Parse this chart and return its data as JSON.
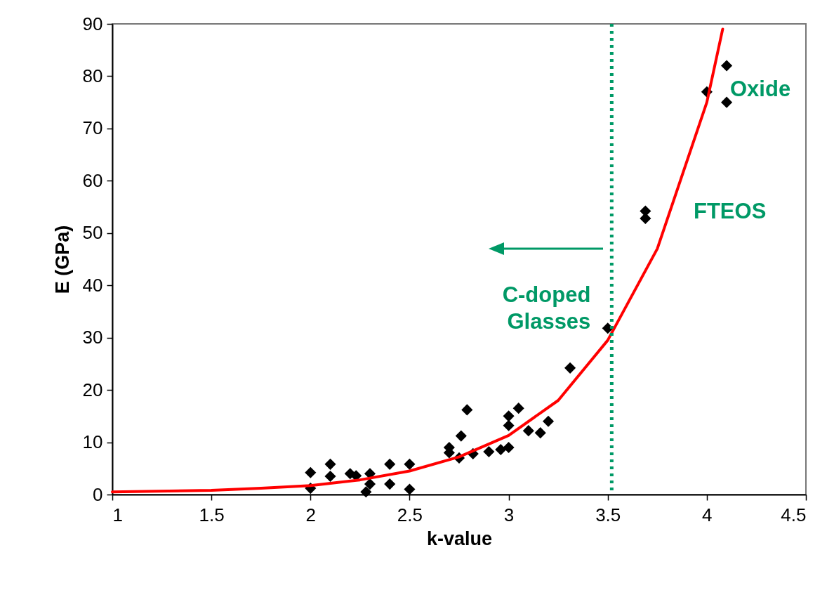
{
  "chart_data": {
    "type": "scatter",
    "xlabel": "k-value",
    "ylabel": "E (GPa)",
    "xlim": [
      1,
      4.5
    ],
    "ylim": [
      0,
      90
    ],
    "xticks": [
      1,
      1.5,
      2,
      2.5,
      3,
      3.5,
      4,
      4.5
    ],
    "yticks": [
      0,
      10,
      20,
      30,
      40,
      50,
      60,
      70,
      80,
      90
    ],
    "grid": false,
    "series": [
      {
        "type": "scatter",
        "marker": "diamond",
        "color": "#000000",
        "x": [
          2.0,
          2.0,
          2.1,
          2.1,
          2.2,
          2.23,
          2.28,
          2.3,
          2.3,
          2.4,
          2.4,
          2.5,
          2.5,
          2.7,
          2.7,
          2.75,
          2.76,
          2.79,
          2.82,
          2.9,
          2.96,
          3.0,
          3.0,
          3.0,
          3.05,
          3.1,
          3.16,
          3.2,
          3.31,
          3.5,
          3.69,
          3.69,
          4.0,
          4.1,
          4.1
        ],
        "values": [
          4.2,
          1.2,
          5.8,
          3.5,
          4.0,
          3.6,
          0.5,
          4.0,
          2.0,
          5.8,
          2.0,
          5.8,
          1.0,
          9.0,
          8.0,
          7.0,
          11.2,
          16.2,
          7.8,
          8.2,
          8.6,
          15.0,
          13.2,
          9.0,
          16.5,
          12.2,
          11.8,
          14.0,
          24.2,
          31.8,
          54.2,
          52.8,
          77,
          82,
          75
        ]
      },
      {
        "type": "line",
        "color": "#ff0000",
        "x": [
          1,
          1.5,
          1.75,
          2,
          2.25,
          2.5,
          2.75,
          3,
          3.25,
          3.5,
          3.75,
          4.0,
          4.08
        ],
        "values": [
          0.5,
          0.8,
          1.2,
          1.7,
          2.8,
          4.5,
          7.2,
          11.3,
          18,
          29.5,
          47,
          75,
          89
        ]
      }
    ],
    "ref_lines": [
      {
        "axis": "x",
        "value": 3.52,
        "label": "C-doped Glasses",
        "color": "#009966",
        "line_style": "dotted"
      }
    ],
    "annotations": [
      "FTEOS",
      "Oxide"
    ]
  }
}
